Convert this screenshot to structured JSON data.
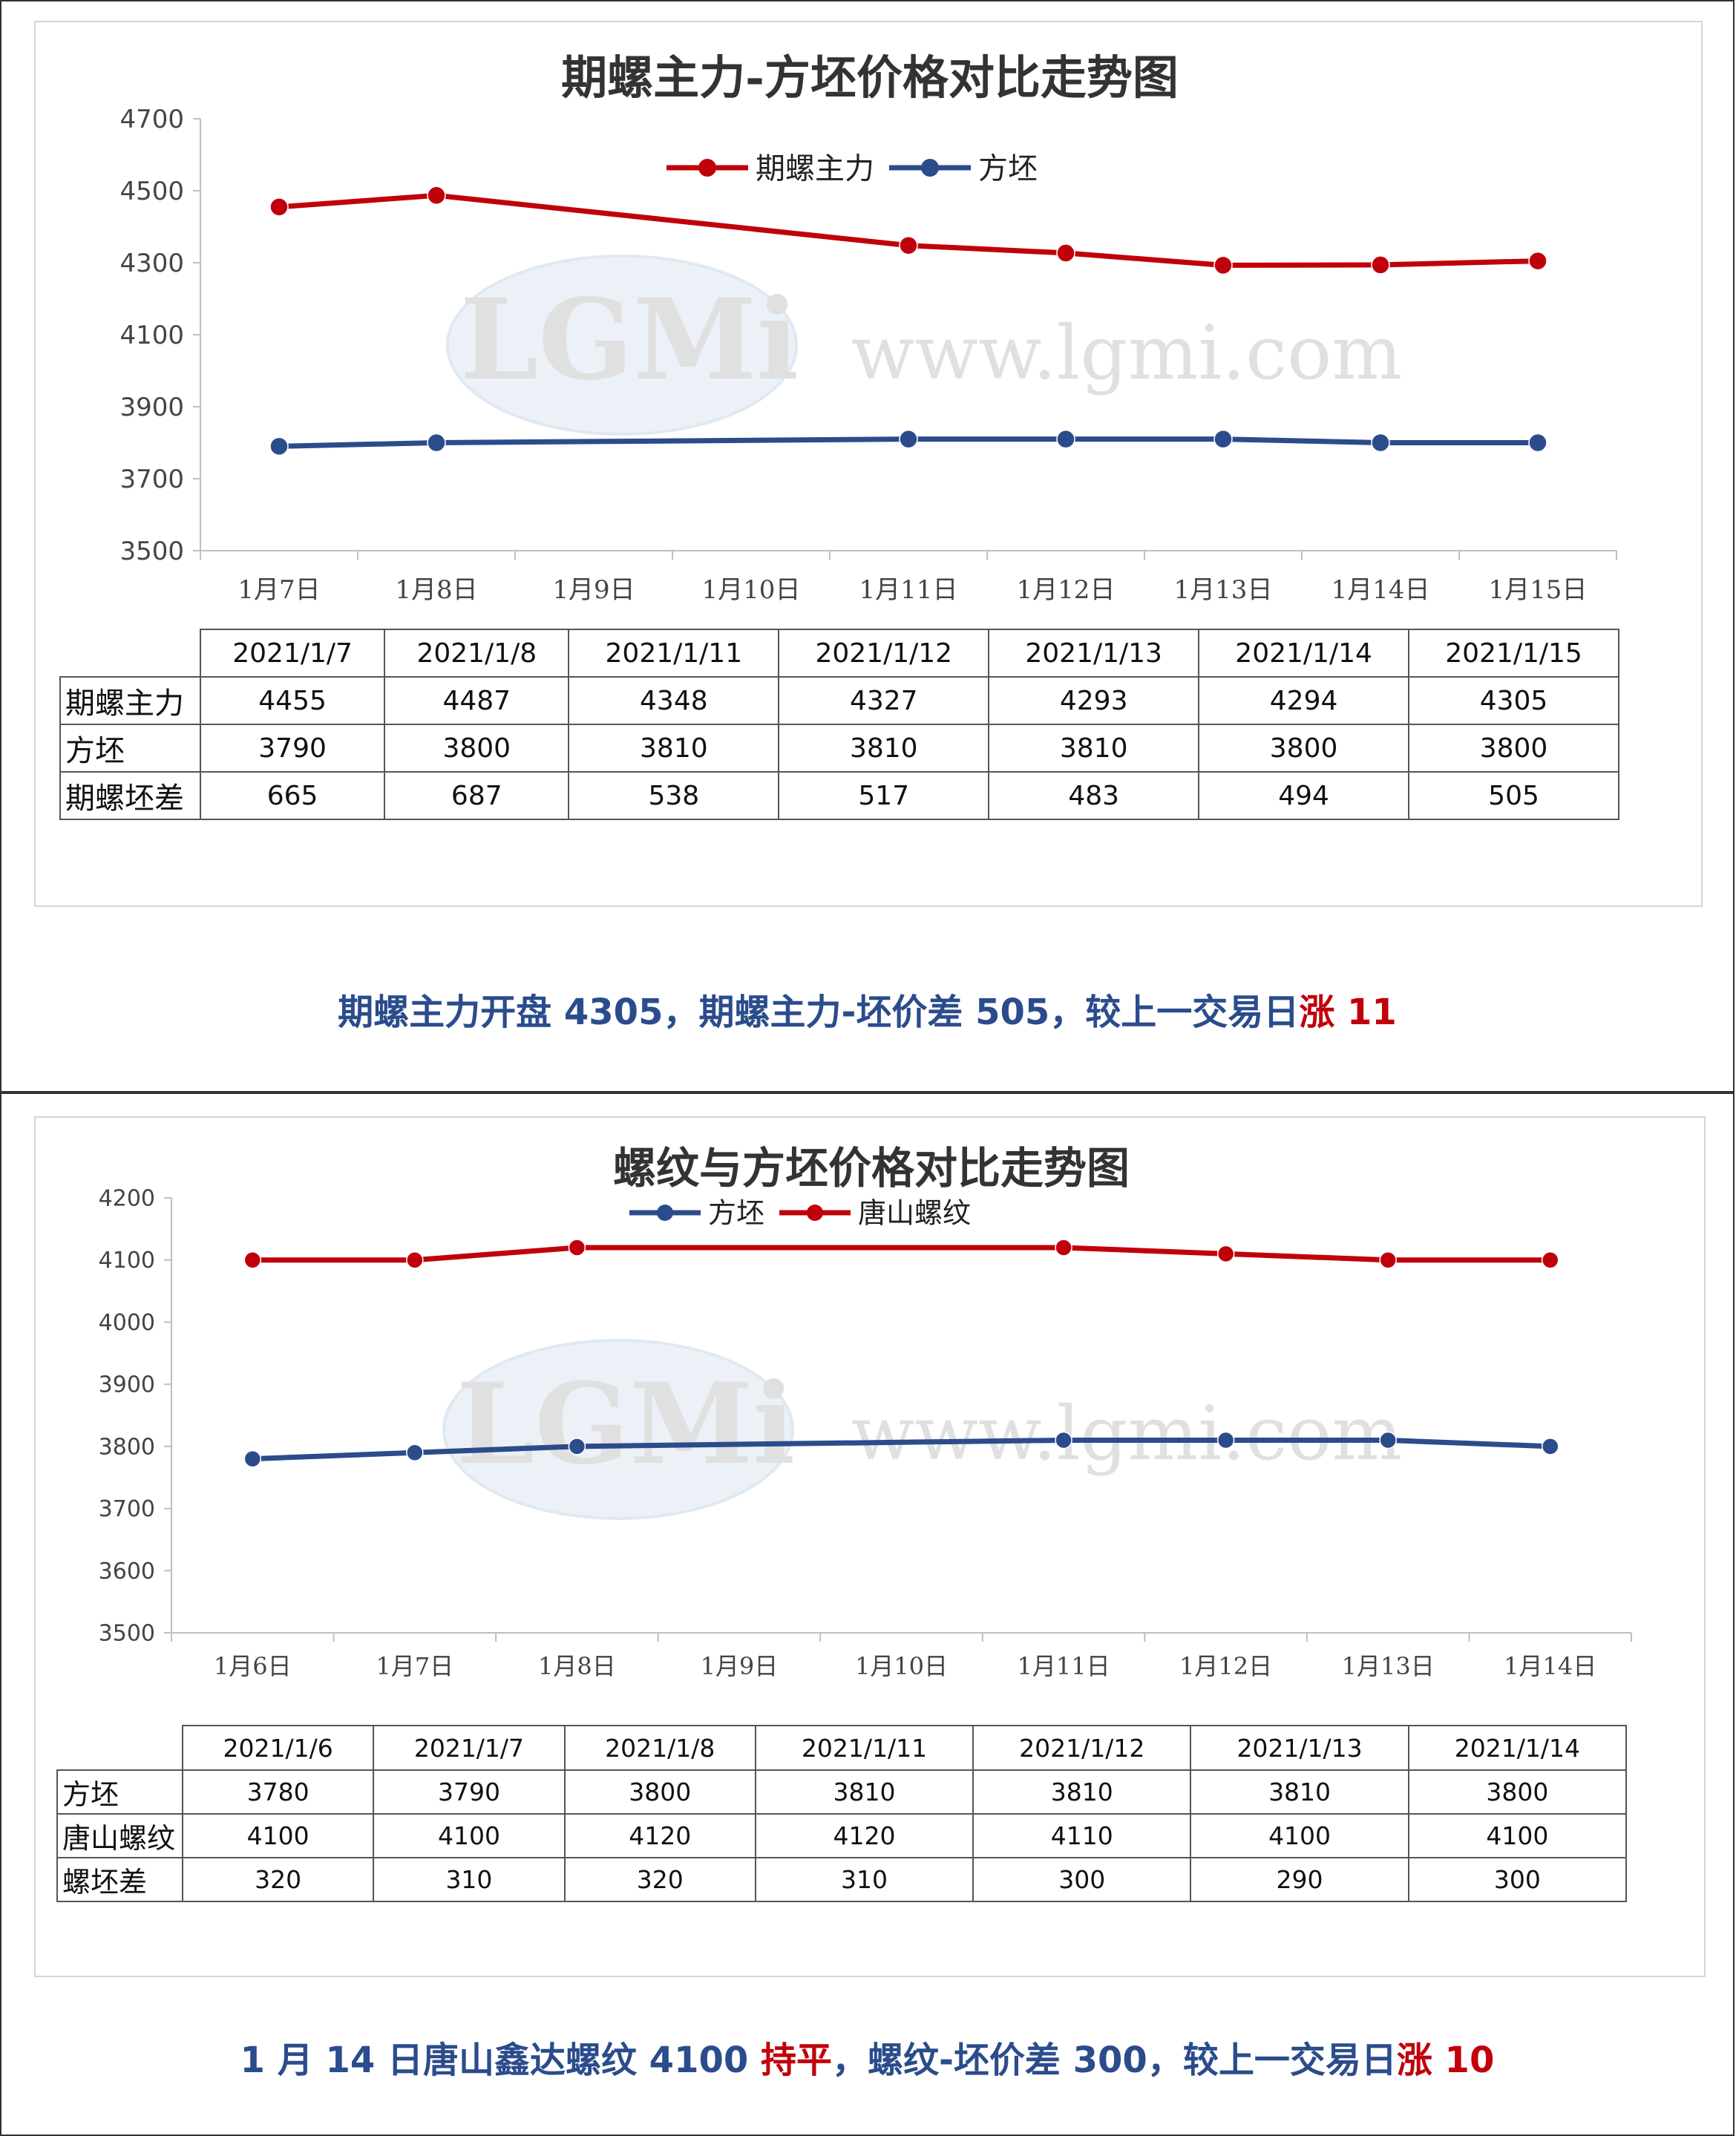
{
  "colors": {
    "red": "#c0000b",
    "blue": "#2b4c8c",
    "summary_blue": "#2b4c8c"
  },
  "watermark": {
    "logo_text": "LGMi",
    "site": "www.lgmi.com"
  },
  "chart_data": [
    {
      "type": "line",
      "title": "期螺主力-方坯价格对比走势图",
      "categories": [
        "1月7日",
        "1月8日",
        "1月9日",
        "1月10日",
        "1月11日",
        "1月12日",
        "1月13日",
        "1月14日",
        "1月15日"
      ],
      "yticks": [
        "4700",
        "4500",
        "4300",
        "4100",
        "3900",
        "3700",
        "3500"
      ],
      "ylim": [
        3500,
        4700
      ],
      "legend_position": "top-center",
      "series": [
        {
          "name": "期螺主力",
          "color": "#c0000b",
          "points": [
            [
              0,
              4455
            ],
            [
              1,
              4487
            ],
            [
              4,
              4348
            ],
            [
              5,
              4327
            ],
            [
              6,
              4293
            ],
            [
              7,
              4294
            ],
            [
              8,
              4305
            ]
          ]
        },
        {
          "name": "方坯",
          "color": "#2b4c8c",
          "points": [
            [
              0,
              3790
            ],
            [
              1,
              3800
            ],
            [
              4,
              3810
            ],
            [
              5,
              3810
            ],
            [
              6,
              3810
            ],
            [
              7,
              3800
            ],
            [
              8,
              3800
            ]
          ]
        }
      ]
    },
    {
      "type": "line",
      "title": "螺纹与方坯价格对比走势图",
      "categories": [
        "1月6日",
        "1月7日",
        "1月8日",
        "1月9日",
        "1月10日",
        "1月11日",
        "1月12日",
        "1月13日",
        "1月14日"
      ],
      "yticks": [
        "4200",
        "4100",
        "4000",
        "3900",
        "3800",
        "3700",
        "3600",
        "3500"
      ],
      "ylim": [
        3500,
        4200
      ],
      "legend_position": "top-center",
      "series": [
        {
          "name": "方坯",
          "color": "#2b4c8c",
          "points": [
            [
              0,
              3780
            ],
            [
              1,
              3790
            ],
            [
              2,
              3800
            ],
            [
              5,
              3810
            ],
            [
              6,
              3810
            ],
            [
              7,
              3810
            ],
            [
              8,
              3800
            ]
          ]
        },
        {
          "name": "唐山螺纹",
          "color": "#c0000b",
          "points": [
            [
              0,
              4100
            ],
            [
              1,
              4100
            ],
            [
              2,
              4120
            ],
            [
              5,
              4120
            ],
            [
              6,
              4110
            ],
            [
              7,
              4100
            ],
            [
              8,
              4100
            ]
          ]
        }
      ]
    }
  ],
  "table1": {
    "headers": [
      "2021/1/7",
      "2021/1/8",
      "2021/1/11",
      "2021/1/12",
      "2021/1/13",
      "2021/1/14",
      "2021/1/15"
    ],
    "rows": [
      {
        "label": "期螺主力",
        "values": [
          "4455",
          "4487",
          "4348",
          "4327",
          "4293",
          "4294",
          "4305"
        ]
      },
      {
        "label": "方坯",
        "values": [
          "3790",
          "3800",
          "3810",
          "3810",
          "3810",
          "3800",
          "3800"
        ]
      },
      {
        "label": "期螺坯差",
        "values": [
          "665",
          "687",
          "538",
          "517",
          "483",
          "494",
          "505"
        ]
      }
    ]
  },
  "table2": {
    "headers": [
      "2021/1/6",
      "2021/1/7",
      "2021/1/8",
      "2021/1/11",
      "2021/1/12",
      "2021/1/13",
      "2021/1/14"
    ],
    "rows": [
      {
        "label": "方坯",
        "values": [
          "3780",
          "3790",
          "3800",
          "3810",
          "3810",
          "3810",
          "3800"
        ]
      },
      {
        "label": "唐山螺纹",
        "values": [
          "4100",
          "4100",
          "4120",
          "4120",
          "4110",
          "4100",
          "4100"
        ]
      },
      {
        "label": "螺坯差",
        "values": [
          "320",
          "310",
          "320",
          "310",
          "300",
          "290",
          "300"
        ]
      }
    ]
  },
  "summary1": {
    "main": "期螺主力开盘 4305，期螺主力-坯价差 505，较上一交易日",
    "change": "涨 11"
  },
  "summary2": {
    "part1": "1 月 14 日唐山鑫达螺纹 4100 ",
    "flat": "持平",
    "part2": "，螺纹-坯价差 300，较上一交易日",
    "change": "涨 10"
  }
}
